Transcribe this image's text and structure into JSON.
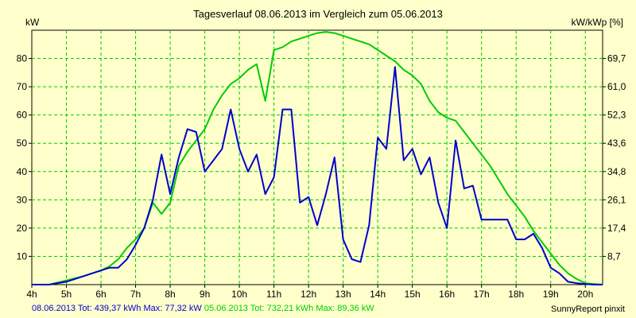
{
  "chart_data": {
    "type": "line",
    "title": "Tagesverlauf 08.06.2013 im Vergleich zum 05.06.2013",
    "ylabel_left": "kW",
    "ylabel_right": "kW/kWp [%]",
    "x_ticks": [
      "4h",
      "5h",
      "6h",
      "7h",
      "8h",
      "9h",
      "10h",
      "11h",
      "12h",
      "13h",
      "14h",
      "15h",
      "16h",
      "17h",
      "18h",
      "19h",
      "20h"
    ],
    "xlim": [
      4,
      20.5
    ],
    "ylim": [
      0,
      90
    ],
    "y_ticks_left": [
      "10",
      "20",
      "30",
      "40",
      "50",
      "60",
      "70",
      "80"
    ],
    "y_ticks_right": [
      "8,7",
      "17,4",
      "26,1",
      "34,8",
      "43,6",
      "52,3",
      "61,0",
      "69,7"
    ],
    "grid": true,
    "series": [
      {
        "name": "08.06.2013",
        "color": "#0000CC",
        "points": [
          [
            4,
            0
          ],
          [
            4.5,
            0
          ],
          [
            5,
            1
          ],
          [
            5.5,
            3
          ],
          [
            6,
            5
          ],
          [
            6.25,
            6
          ],
          [
            6.5,
            6
          ],
          [
            6.75,
            9
          ],
          [
            7,
            14
          ],
          [
            7.25,
            20
          ],
          [
            7.5,
            30
          ],
          [
            7.75,
            46
          ],
          [
            8,
            32
          ],
          [
            8.25,
            45
          ],
          [
            8.5,
            55
          ],
          [
            8.75,
            54
          ],
          [
            9,
            40
          ],
          [
            9.25,
            44
          ],
          [
            9.5,
            48
          ],
          [
            9.75,
            62
          ],
          [
            10,
            48
          ],
          [
            10.25,
            40
          ],
          [
            10.5,
            46
          ],
          [
            10.75,
            32
          ],
          [
            11,
            38
          ],
          [
            11.25,
            62
          ],
          [
            11.5,
            62
          ],
          [
            11.75,
            29
          ],
          [
            12,
            31
          ],
          [
            12.25,
            21
          ],
          [
            12.5,
            32
          ],
          [
            12.75,
            45
          ],
          [
            13,
            16
          ],
          [
            13.25,
            9
          ],
          [
            13.5,
            8
          ],
          [
            13.75,
            21
          ],
          [
            14,
            52
          ],
          [
            14.25,
            48
          ],
          [
            14.5,
            77
          ],
          [
            14.75,
            44
          ],
          [
            15,
            48
          ],
          [
            15.25,
            39
          ],
          [
            15.5,
            45
          ],
          [
            15.75,
            29
          ],
          [
            16,
            20
          ],
          [
            16.25,
            51
          ],
          [
            16.5,
            34
          ],
          [
            16.75,
            35
          ],
          [
            17,
            23
          ],
          [
            17.25,
            23
          ],
          [
            17.5,
            23
          ],
          [
            17.75,
            23
          ],
          [
            18,
            16
          ],
          [
            18.25,
            16
          ],
          [
            18.5,
            18
          ],
          [
            18.75,
            13
          ],
          [
            19,
            6
          ],
          [
            19.25,
            4
          ],
          [
            19.5,
            1
          ],
          [
            19.75,
            0.5
          ],
          [
            20,
            0.2
          ],
          [
            20.25,
            0
          ],
          [
            20.5,
            0
          ]
        ]
      },
      {
        "name": "05.06.2013",
        "color": "#00CC00",
        "points": [
          [
            4,
            0
          ],
          [
            4.5,
            0
          ],
          [
            5,
            1.5
          ],
          [
            5.5,
            3
          ],
          [
            6,
            5
          ],
          [
            6.25,
            6.5
          ],
          [
            6.5,
            9
          ],
          [
            6.75,
            13
          ],
          [
            7,
            16
          ],
          [
            7.25,
            20
          ],
          [
            7.5,
            29
          ],
          [
            7.75,
            25
          ],
          [
            8,
            29
          ],
          [
            8.25,
            42
          ],
          [
            8.5,
            47
          ],
          [
            8.75,
            51
          ],
          [
            9,
            55
          ],
          [
            9.25,
            62
          ],
          [
            9.5,
            67
          ],
          [
            9.75,
            71
          ],
          [
            10,
            73
          ],
          [
            10.25,
            76
          ],
          [
            10.5,
            78
          ],
          [
            10.75,
            65
          ],
          [
            11,
            83
          ],
          [
            11.25,
            84
          ],
          [
            11.5,
            86
          ],
          [
            11.75,
            87
          ],
          [
            12,
            88
          ],
          [
            12.25,
            89
          ],
          [
            12.5,
            89.4
          ],
          [
            12.75,
            89
          ],
          [
            13,
            88
          ],
          [
            13.25,
            87
          ],
          [
            13.5,
            86
          ],
          [
            13.75,
            85
          ],
          [
            14,
            83
          ],
          [
            14.25,
            81
          ],
          [
            14.5,
            79
          ],
          [
            14.75,
            76
          ],
          [
            15,
            74
          ],
          [
            15.25,
            71
          ],
          [
            15.5,
            65
          ],
          [
            15.75,
            61
          ],
          [
            16,
            59
          ],
          [
            16.25,
            58
          ],
          [
            16.5,
            54
          ],
          [
            16.75,
            50
          ],
          [
            17,
            46
          ],
          [
            17.25,
            42
          ],
          [
            17.5,
            37
          ],
          [
            17.75,
            32
          ],
          [
            18,
            28
          ],
          [
            18.25,
            24
          ],
          [
            18.5,
            19
          ],
          [
            18.75,
            15
          ],
          [
            19,
            11
          ],
          [
            19.25,
            7
          ],
          [
            19.5,
            4
          ],
          [
            19.75,
            2
          ],
          [
            20,
            0.5
          ],
          [
            20.25,
            0.2
          ],
          [
            20.5,
            0
          ]
        ]
      }
    ]
  },
  "footer": {
    "series1_label": "08.06.2013 Tot: 439,37 kWh Max: 77,32 kW",
    "series2_label": "05.06.2013 Tot: 732,21 kWh Max: 89,36 kW",
    "credit": "SunnyReport pinxit"
  },
  "colors": {
    "background": "#FFFFCC",
    "grid": "#00CC00",
    "series1": "#0000CC",
    "series2": "#00CC00"
  }
}
